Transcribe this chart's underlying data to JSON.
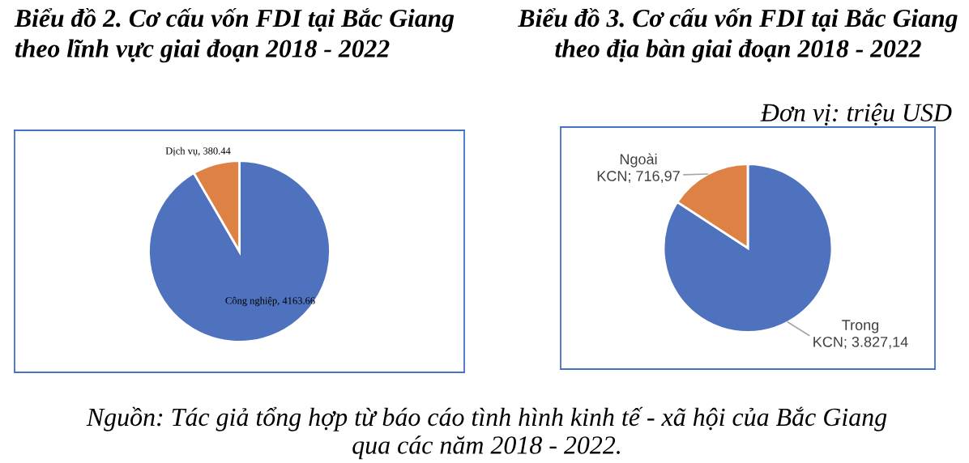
{
  "chart_data": [
    {
      "type": "pie",
      "title": "Biểu đồ 2. Cơ cấu vốn FDI tại Bắc Giang\ntheo lĩnh vực giai đoạn 2018 - 2022",
      "categories": [
        "Công nghiệp",
        "Dịch vụ"
      ],
      "values": [
        4163.66,
        380.44
      ],
      "colors": [
        "#4e72be",
        "#dd8244"
      ],
      "value_labels": [
        "4163.66",
        "380.44"
      ]
    },
    {
      "type": "pie",
      "title": "Biểu đồ 3. Cơ cấu vốn FDI tại Bắc Giang\ntheo địa bàn giai đoạn 2018 - 2022",
      "categories": [
        "Trong KCN",
        "Ngoài KCN"
      ],
      "values": [
        3827.14,
        716.97
      ],
      "colors": [
        "#4e72be",
        "#dd8244"
      ],
      "value_labels": [
        "3.827,14",
        "716,97"
      ],
      "annotations": [
        "Đơn vị: triệu USD",
        "Nguồn: Tác giả tổng hợp từ báo cáo tình hình kinh tế - xã hội của Bắc Giang\nqua các năm 2018 - 2022."
      ]
    }
  ]
}
